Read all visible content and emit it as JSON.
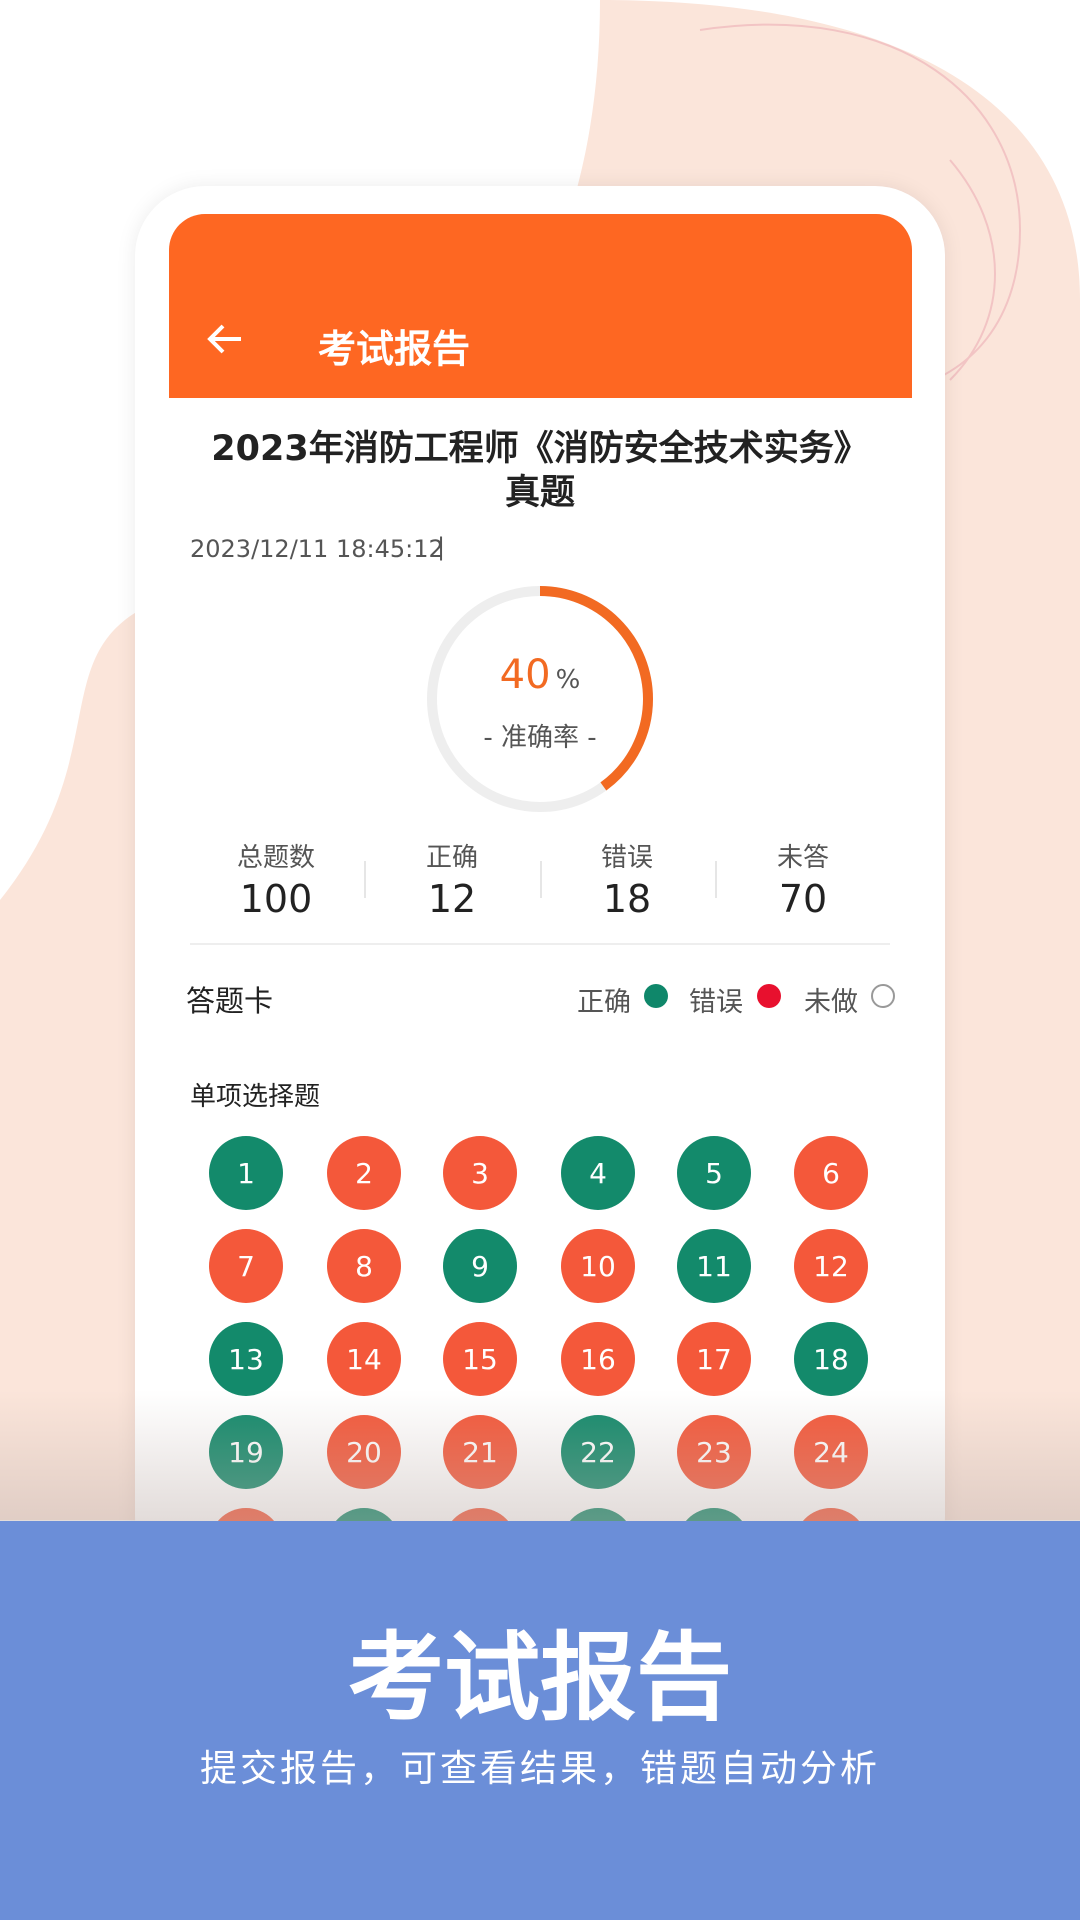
{
  "header": {
    "title": "考试报告"
  },
  "report": {
    "title": [
      "2023年消防工程师《消防安全技术实务》",
      "真题"
    ],
    "datetime": "2023/12/11 18:45:12",
    "accuracy": {
      "value": 40,
      "unit": "%",
      "label": "- 准确率 -",
      "color": "#f26a22"
    },
    "stats": [
      {
        "label": "总题数",
        "value": 100
      },
      {
        "label": "正确",
        "value": 12
      },
      {
        "label": "错误",
        "value": 18
      },
      {
        "label": "未答",
        "value": 70
      }
    ]
  },
  "answer_card": {
    "title": "答题卡",
    "legend": [
      {
        "label": "正确",
        "color": "#0f876a"
      },
      {
        "label": "错误",
        "color": "#e8102e"
      },
      {
        "label": "未做",
        "color": "#999999"
      }
    ],
    "correct_color": "#138a6b",
    "wrong_color": "#f4583a",
    "sections": [
      {
        "title": "单项选择题",
        "questions": [
          {
            "number": 1,
            "result": "correct"
          },
          {
            "number": 2,
            "result": "wrong"
          },
          {
            "number": 3,
            "result": "wrong"
          },
          {
            "number": 4,
            "result": "correct"
          },
          {
            "number": 5,
            "result": "correct"
          },
          {
            "number": 6,
            "result": "wrong"
          },
          {
            "number": 7,
            "result": "wrong"
          },
          {
            "number": 8,
            "result": "wrong"
          },
          {
            "number": 9,
            "result": "correct"
          },
          {
            "number": 10,
            "result": "wrong"
          },
          {
            "number": 11,
            "result": "correct"
          },
          {
            "number": 12,
            "result": "wrong"
          },
          {
            "number": 13,
            "result": "correct"
          },
          {
            "number": 14,
            "result": "wrong"
          },
          {
            "number": 15,
            "result": "wrong"
          },
          {
            "number": 16,
            "result": "wrong"
          },
          {
            "number": 17,
            "result": "wrong"
          },
          {
            "number": 18,
            "result": "correct"
          },
          {
            "number": 19,
            "result": "correct"
          },
          {
            "number": 20,
            "result": "wrong"
          },
          {
            "number": 21,
            "result": "wrong"
          },
          {
            "number": 22,
            "result": "correct"
          },
          {
            "number": 23,
            "result": "wrong"
          },
          {
            "number": 24,
            "result": "wrong"
          }
        ]
      }
    ]
  },
  "banner": {
    "title": "考试报告",
    "subtitle": "提交报告，可查看结果，错题自动分析"
  }
}
